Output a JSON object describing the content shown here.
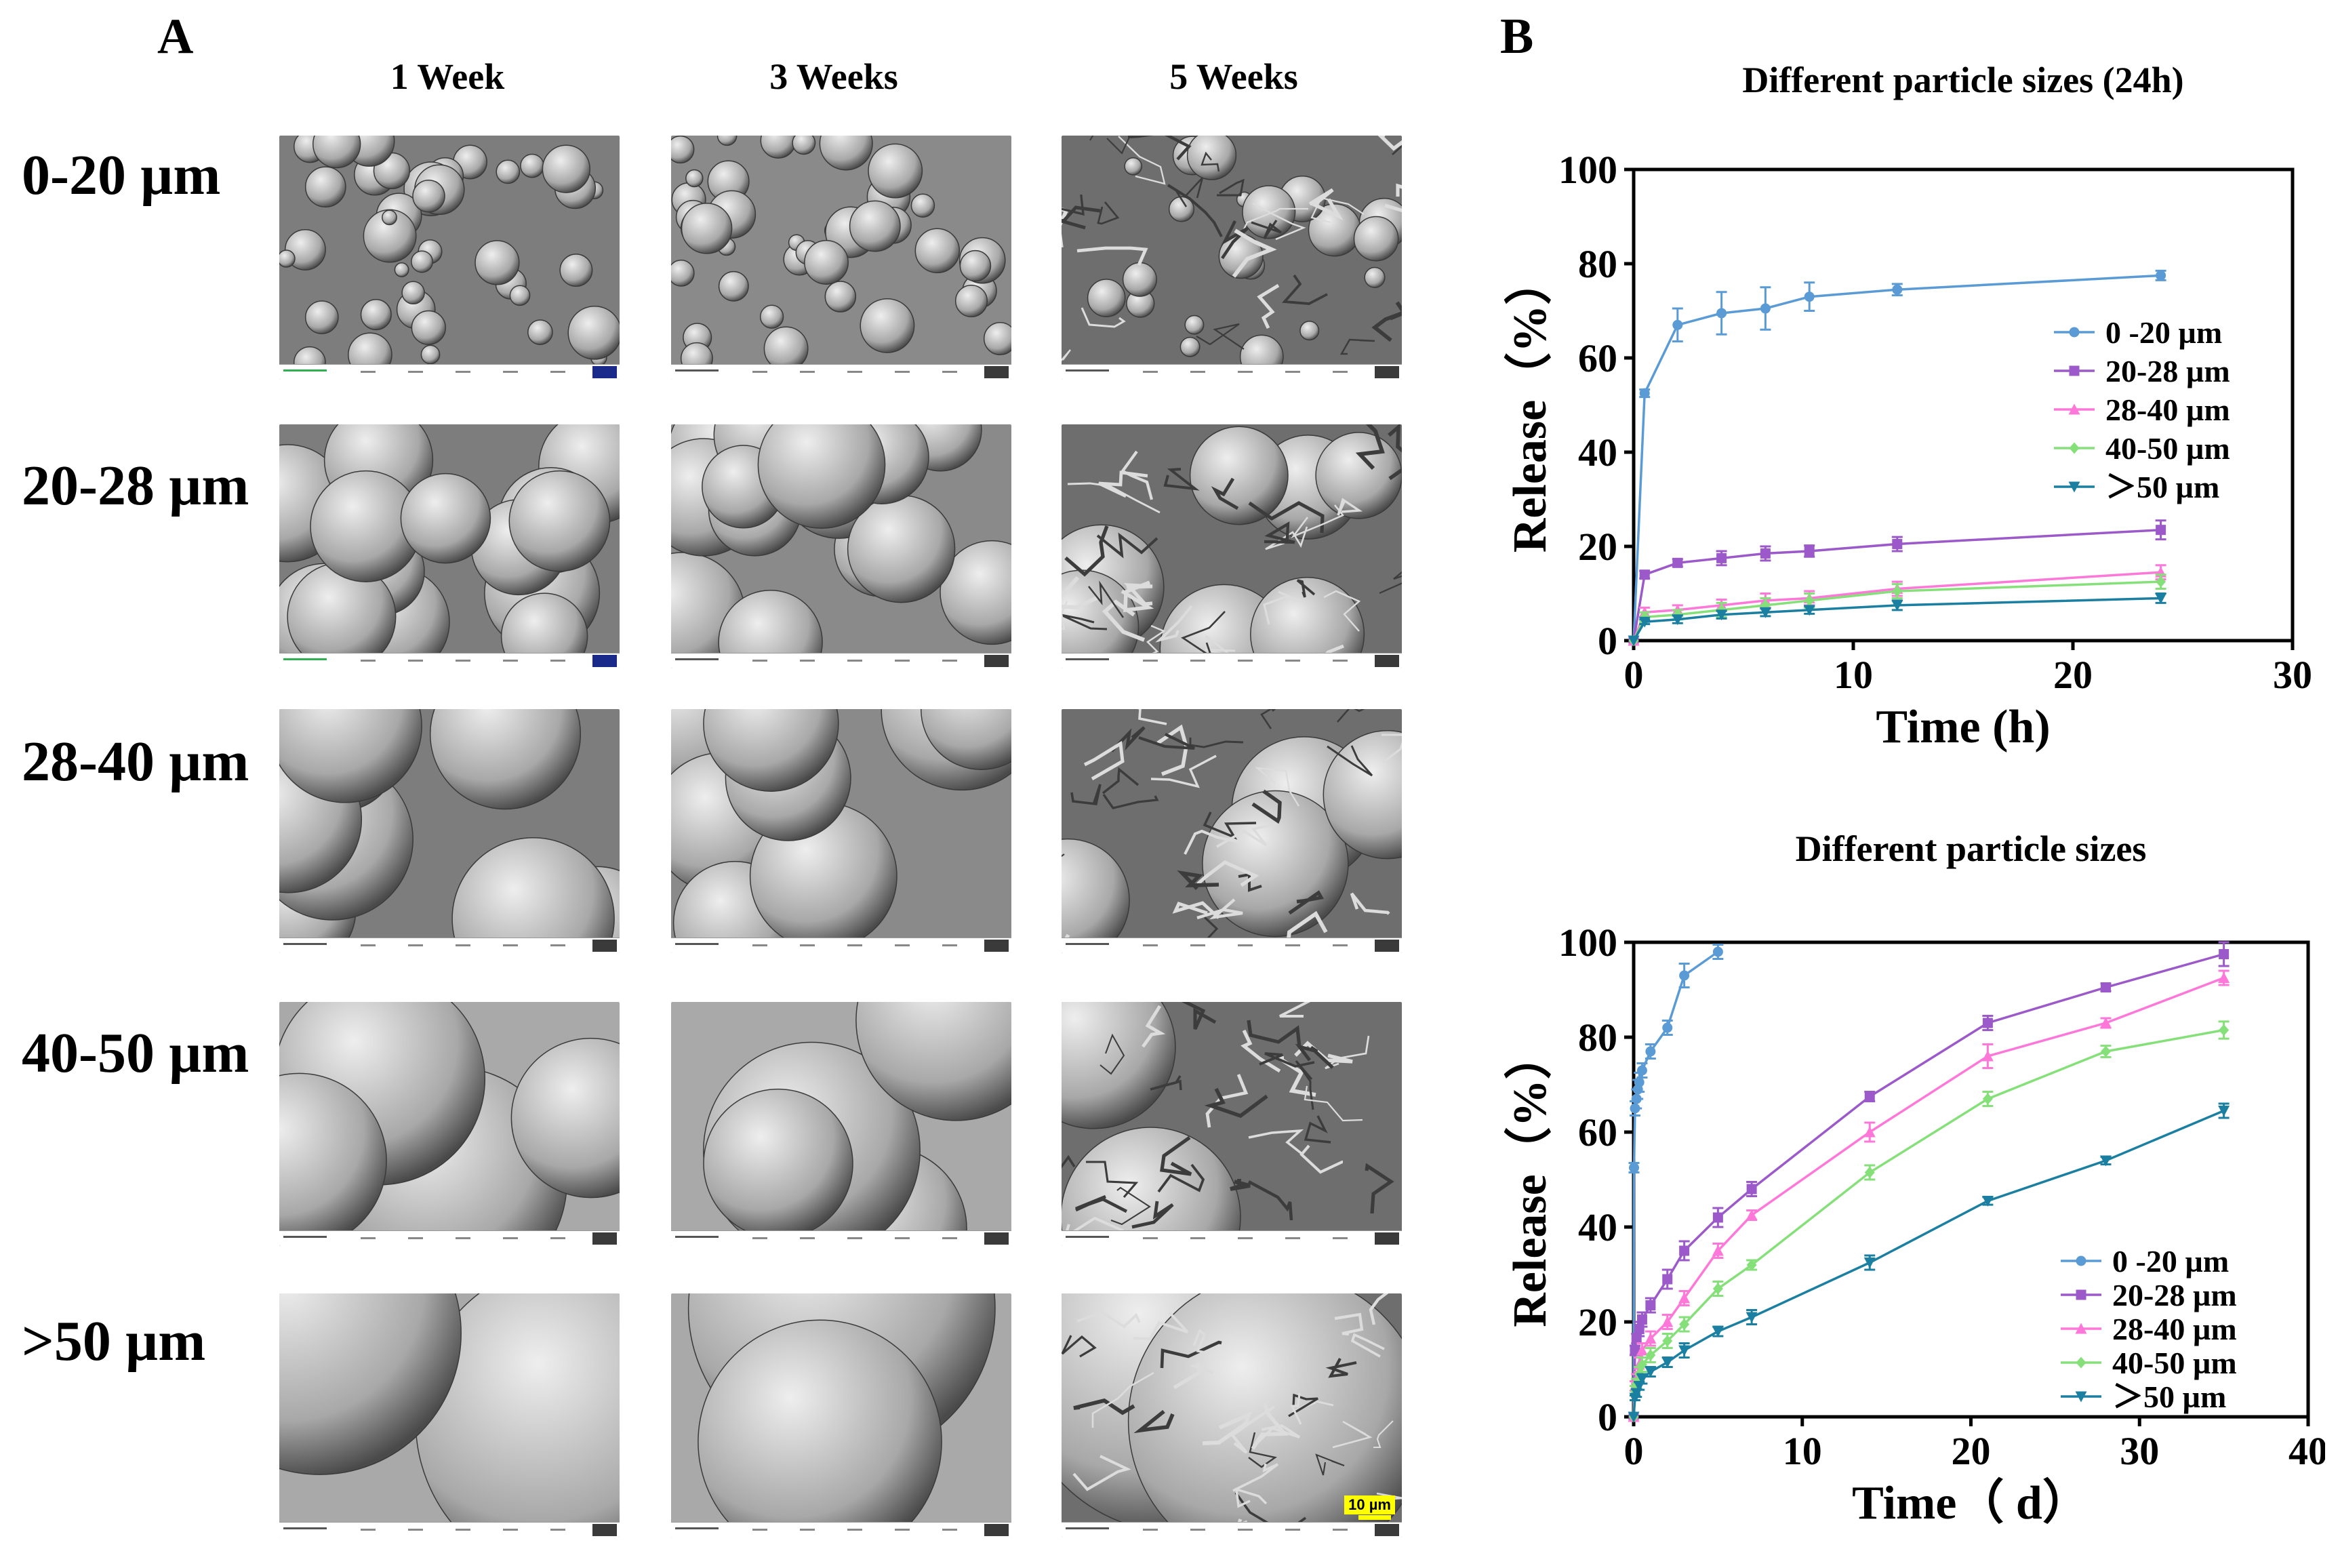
{
  "panel_a_letter": "A",
  "panel_b_letter": "B",
  "columns": [
    "1 Week",
    "3 Weeks",
    "5 Weeks"
  ],
  "rows": [
    "0-20 µm",
    "20-28 µm",
    "28-40 µm",
    "40-50 µm",
    ">50 µm"
  ],
  "scale_bar_label": "10 µm",
  "colors": {
    "s1": "#5b9bd5",
    "s2": "#9b59c9",
    "s3": "#ff77d8",
    "s4": "#86e07a",
    "s5": "#1a7fa0"
  },
  "chart_data": [
    {
      "type": "line",
      "title": "Different particle sizes (24h)",
      "xlabel": "Time (h)",
      "ylabel": "Release（%）",
      "xlim": [
        0,
        30
      ],
      "ylim": [
        0,
        100
      ],
      "xticks": [
        0,
        10,
        20,
        30
      ],
      "yticks": [
        0,
        20,
        40,
        60,
        80,
        100
      ],
      "legend": "right",
      "series": [
        {
          "name": "0 -20 µm",
          "marker": "circle",
          "x": [
            0,
            0.5,
            2,
            4,
            6,
            8,
            12,
            24
          ],
          "y": [
            0,
            52.5,
            67,
            69.5,
            70.5,
            73,
            74.5,
            77.5
          ],
          "err": [
            0,
            0.8,
            3.5,
            4.5,
            4.5,
            3,
            1.2,
            1
          ]
        },
        {
          "name": "20-28 µm",
          "marker": "square",
          "x": [
            0,
            0.5,
            2,
            4,
            6,
            8,
            12,
            24
          ],
          "y": [
            0,
            14,
            16.5,
            17.5,
            18.5,
            19,
            20.5,
            23.5
          ],
          "err": [
            0,
            0.8,
            0.8,
            1.5,
            1.5,
            1.2,
            1.5,
            2
          ]
        },
        {
          "name": "28-40 µm",
          "marker": "triangle",
          "x": [
            0,
            0.5,
            2,
            4,
            6,
            8,
            12,
            24
          ],
          "y": [
            0,
            6,
            6.5,
            7.5,
            8.5,
            9,
            11,
            14.5
          ],
          "err": [
            0,
            1,
            1,
            1.2,
            1.5,
            1.5,
            1.5,
            1.5
          ]
        },
        {
          "name": "40-50 µm",
          "marker": "diamond",
          "x": [
            0,
            0.5,
            2,
            4,
            6,
            8,
            12,
            24
          ],
          "y": [
            0,
            5,
            5.5,
            6.5,
            7.5,
            8.5,
            10.5,
            12.5
          ],
          "err": [
            0,
            1,
            1,
            1.5,
            1.5,
            1.5,
            1.5,
            1.5
          ]
        },
        {
          "name": "＞50 µm",
          "marker": "triangle-down",
          "x": [
            0,
            0.5,
            2,
            4,
            6,
            8,
            12,
            24
          ],
          "y": [
            0,
            4,
            4.5,
            5.5,
            6,
            6.5,
            7.5,
            9
          ],
          "err": [
            0,
            0.5,
            0.8,
            0.8,
            0.8,
            0.8,
            1,
            1
          ]
        }
      ]
    },
    {
      "type": "line",
      "title": "Different particle sizes",
      "xlabel": "Time（ d）",
      "ylabel": "Release（%）",
      "xlim": [
        0,
        40
      ],
      "ylim": [
        0,
        100
      ],
      "xticks": [
        0,
        10,
        20,
        30,
        40
      ],
      "yticks": [
        0,
        20,
        40,
        60,
        80,
        100
      ],
      "legend": "bottom-right",
      "series": [
        {
          "name": "0 -20 µm",
          "marker": "circle",
          "x": [
            0,
            0.02,
            0.08,
            0.17,
            0.25,
            0.33,
            0.5,
            1,
            2,
            3,
            5
          ],
          "y": [
            0,
            52.5,
            65,
            67,
            69,
            70.5,
            73,
            77,
            82,
            93,
            98
          ],
          "err": [
            0,
            1,
            1.5,
            2,
            2,
            2,
            1.5,
            1.5,
            1.5,
            2.5,
            1.5
          ]
        },
        {
          "name": "20-28 µm",
          "marker": "square",
          "x": [
            0,
            0.08,
            0.17,
            0.33,
            0.5,
            1,
            2,
            3,
            5,
            7,
            14,
            21,
            28,
            35
          ],
          "y": [
            0,
            14,
            16.5,
            18.5,
            20.5,
            23.5,
            29,
            35,
            42,
            48,
            67.5,
            83,
            90.5,
            97.5
          ],
          "err": [
            0,
            1,
            1,
            1.5,
            1.5,
            1.5,
            2,
            2,
            2,
            1.5,
            1,
            1.5,
            0.8,
            2.5
          ]
        },
        {
          "name": "28-40 µm",
          "marker": "triangle",
          "x": [
            0,
            0.08,
            0.17,
            0.33,
            0.5,
            1,
            2,
            3,
            5,
            7,
            14,
            21,
            28,
            35
          ],
          "y": [
            0,
            6.5,
            8,
            11,
            14,
            16.5,
            20,
            25,
            35,
            42.5,
            60,
            76,
            83,
            92.5
          ],
          "err": [
            0,
            1,
            1,
            1.5,
            1.5,
            1.5,
            1.5,
            1.5,
            1.5,
            1,
            2,
            2.5,
            1,
            1.5
          ]
        },
        {
          "name": "40-50 µm",
          "marker": "diamond",
          "x": [
            0,
            0.08,
            0.17,
            0.33,
            0.5,
            1,
            2,
            3,
            5,
            7,
            14,
            21,
            28,
            35
          ],
          "y": [
            0,
            5.5,
            7,
            9,
            11,
            13,
            16,
            19.5,
            27,
            32,
            51.5,
            67,
            77,
            81.5
          ],
          "err": [
            0,
            1,
            1,
            1.5,
            1.5,
            1.5,
            1.5,
            1.5,
            1.5,
            1,
            1.5,
            1.5,
            1.2,
            1.8
          ]
        },
        {
          "name": "＞50 µm",
          "marker": "triangle-down",
          "x": [
            0,
            0.08,
            0.17,
            0.33,
            0.5,
            1,
            2,
            3,
            5,
            7,
            14,
            21,
            28,
            35
          ],
          "y": [
            0,
            4,
            5,
            6.5,
            8,
            9.5,
            11.5,
            14,
            18,
            21,
            32.5,
            45.5,
            54,
            64.5
          ],
          "err": [
            0,
            0.5,
            0.8,
            0.8,
            1,
            1,
            1,
            1.5,
            1,
            1.5,
            1.5,
            0.8,
            0.8,
            1.5
          ]
        }
      ]
    }
  ]
}
